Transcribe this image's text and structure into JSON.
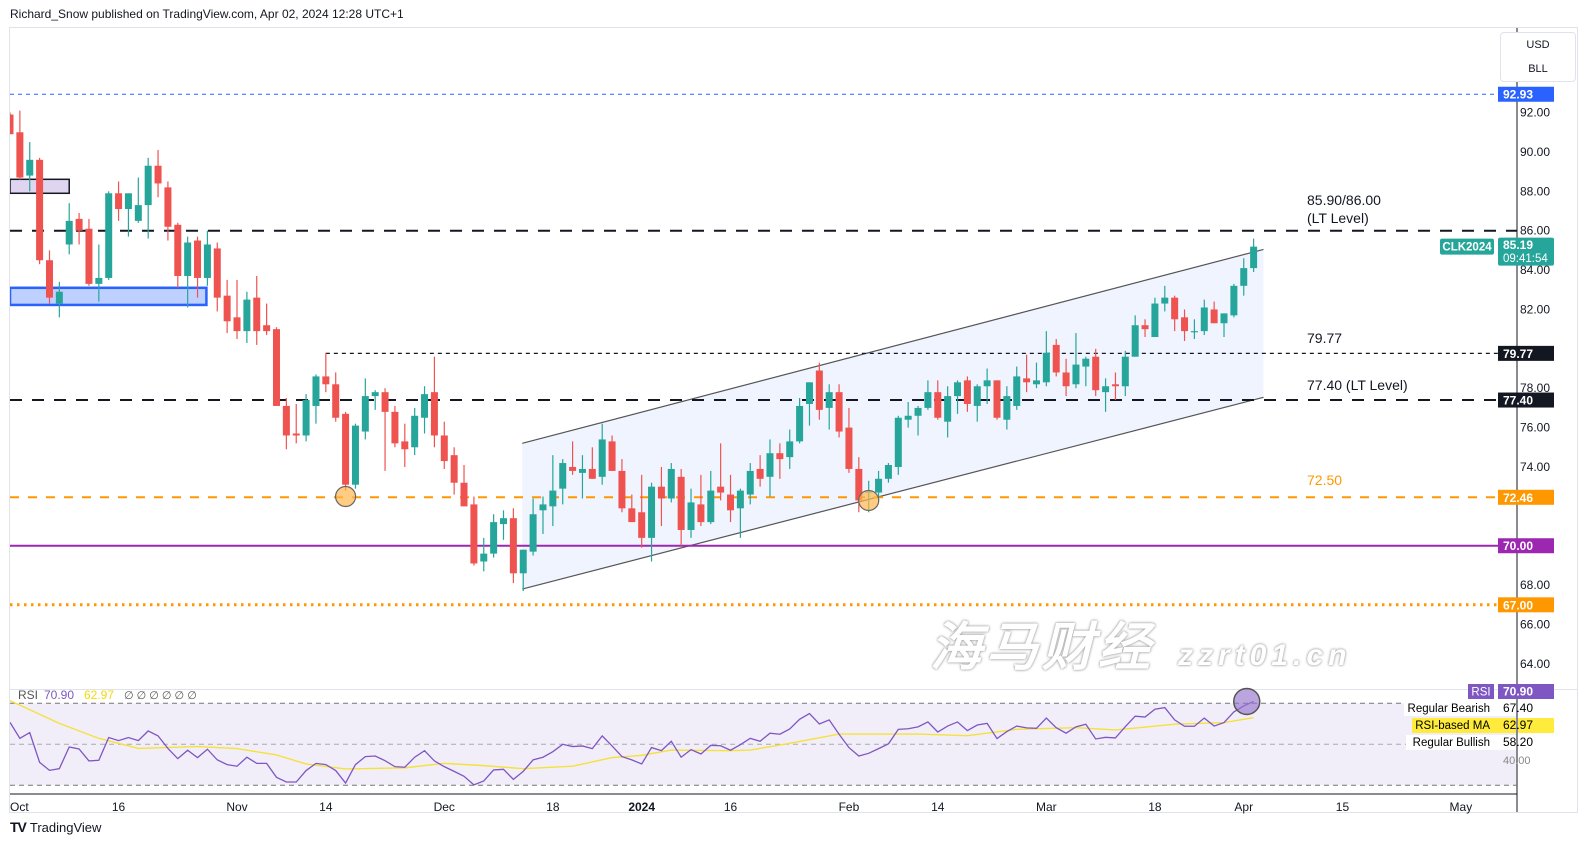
{
  "header": {
    "text": "Richard_Snow published on TradingView.com, Apr 02, 2024 12:28 UTC+1"
  },
  "unit_box": {
    "currency": "USD",
    "unit": "BLL"
  },
  "footer": {
    "logo_text": "TradingView"
  },
  "watermark": {
    "cn": "海马财经",
    "url": "zzrt01.cn"
  },
  "colors": {
    "up": "#26a69a",
    "down": "#ef5350",
    "rsi": "#7e57c2",
    "rsi_ma": "#f5e13b",
    "orange": "#ff9800",
    "purple": "#9c27b0",
    "blue": "#2962ff",
    "dark": "#131722"
  },
  "chart_data": [
    {
      "type": "candlestick",
      "symbol": "CLK2024",
      "last_price": "85.19",
      "countdown": "09:41:54",
      "ylim": [
        62.5,
        93.5
      ],
      "price_ticks": [
        "92.00",
        "90.00",
        "88.00",
        "86.00",
        "84.00",
        "82.00",
        "78.00",
        "76.00",
        "74.00",
        "68.00",
        "66.00",
        "64.00"
      ],
      "x_ticks": [
        {
          "label": "Oct",
          "bar": 0
        },
        {
          "label": "16",
          "bar": 11
        },
        {
          "label": "Nov",
          "bar": 23
        },
        {
          "label": "14",
          "bar": 32
        },
        {
          "label": "Dec",
          "bar": 44
        },
        {
          "label": "18",
          "bar": 55
        },
        {
          "label": "2024",
          "bar": 64,
          "bold": true
        },
        {
          "label": "16",
          "bar": 73
        },
        {
          "label": "Feb",
          "bar": 85
        },
        {
          "label": "14",
          "bar": 94
        },
        {
          "label": "Mar",
          "bar": 105
        },
        {
          "label": "18",
          "bar": 116
        },
        {
          "label": "Apr",
          "bar": 125
        },
        {
          "label": "15",
          "bar": 135
        },
        {
          "label": "May",
          "bar": 147
        }
      ],
      "ohlc": [
        [
          91.9,
          92.0,
          90.9,
          90.9
        ],
        [
          91.0,
          92.1,
          88.6,
          88.7
        ],
        [
          88.8,
          90.5,
          88.0,
          89.6
        ],
        [
          89.6,
          89.7,
          84.3,
          84.5
        ],
        [
          84.5,
          85.0,
          82.3,
          82.6
        ],
        [
          82.3,
          83.4,
          81.6,
          82.9
        ],
        [
          85.3,
          87.4,
          84.8,
          86.5
        ],
        [
          86.6,
          86.9,
          85.3,
          86.0
        ],
        [
          86.1,
          86.6,
          83.2,
          83.3
        ],
        [
          83.3,
          85.3,
          82.4,
          83.6
        ],
        [
          83.6,
          88.0,
          83.5,
          87.9
        ],
        [
          87.9,
          88.5,
          86.5,
          87.1
        ],
        [
          87.1,
          87.9,
          85.7,
          87.9
        ],
        [
          86.5,
          88.7,
          86.4,
          87.3
        ],
        [
          87.3,
          89.7,
          85.6,
          89.3
        ],
        [
          89.3,
          90.1,
          87.7,
          88.4
        ],
        [
          88.2,
          88.5,
          85.5,
          86.2
        ],
        [
          86.3,
          86.4,
          83.1,
          83.7
        ],
        [
          83.7,
          85.7,
          82.1,
          85.4
        ],
        [
          85.5,
          85.7,
          82.6,
          83.6
        ],
        [
          83.6,
          86.0,
          83.2,
          85.3
        ],
        [
          85.1,
          85.4,
          81.9,
          82.6
        ],
        [
          82.7,
          83.5,
          80.8,
          81.4
        ],
        [
          81.6,
          83.5,
          80.5,
          80.9
        ],
        [
          80.9,
          82.9,
          80.3,
          82.5
        ],
        [
          82.6,
          83.7,
          80.2,
          80.9
        ],
        [
          81.2,
          82.3,
          80.7,
          80.9
        ],
        [
          81.0,
          81.1,
          77.1,
          77.1
        ],
        [
          77.1,
          77.5,
          74.9,
          75.6
        ],
        [
          75.7,
          77.2,
          75.2,
          75.6
        ],
        [
          75.6,
          77.7,
          75.3,
          77.4
        ],
        [
          77.1,
          78.7,
          76.2,
          78.6
        ],
        [
          78.6,
          79.8,
          77.8,
          78.2
        ],
        [
          78.2,
          78.8,
          76.3,
          76.5
        ],
        [
          76.7,
          76.8,
          72.8,
          73.1
        ],
        [
          73.1,
          76.2,
          72.9,
          76.1
        ],
        [
          75.8,
          78.5,
          75.4,
          77.6
        ],
        [
          77.6,
          77.9,
          76.9,
          77.8
        ],
        [
          77.8,
          78.0,
          73.8,
          76.8
        ],
        [
          76.8,
          77.1,
          75.0,
          75.2
        ],
        [
          75.3,
          76.2,
          74.0,
          74.9
        ],
        [
          75.0,
          77.0,
          74.6,
          76.6
        ],
        [
          76.5,
          78.1,
          75.7,
          77.7
        ],
        [
          77.8,
          79.6,
          75.0,
          75.6
        ],
        [
          75.6,
          76.3,
          73.9,
          74.3
        ],
        [
          74.6,
          75.0,
          72.6,
          73.2
        ],
        [
          73.2,
          74.1,
          72.0,
          72.0
        ],
        [
          72.1,
          72.5,
          69.0,
          69.1
        ],
        [
          69.2,
          70.4,
          68.7,
          69.6
        ],
        [
          69.6,
          71.6,
          69.4,
          71.2
        ],
        [
          71.1,
          71.8,
          70.3,
          71.4
        ],
        [
          71.4,
          71.9,
          68.1,
          68.6
        ],
        [
          68.6,
          69.8,
          67.7,
          69.8
        ],
        [
          69.7,
          72.4,
          69.5,
          71.6
        ],
        [
          71.8,
          72.5,
          70.6,
          72.1
        ],
        [
          72.0,
          74.6,
          71.0,
          72.8
        ],
        [
          72.9,
          74.4,
          72.1,
          74.2
        ],
        [
          74.0,
          75.3,
          73.6,
          73.8
        ],
        [
          73.7,
          74.6,
          72.4,
          73.9
        ],
        [
          73.9,
          75.0,
          73.4,
          73.4
        ],
        [
          73.5,
          76.2,
          73.1,
          75.4
        ],
        [
          75.3,
          75.6,
          73.8,
          73.8
        ],
        [
          73.8,
          74.4,
          71.7,
          71.9
        ],
        [
          71.9,
          72.6,
          71.2,
          71.2
        ],
        [
          71.7,
          73.6,
          69.9,
          70.4
        ],
        [
          70.4,
          73.2,
          69.2,
          73.0
        ],
        [
          73.0,
          74.0,
          71.0,
          72.4
        ],
        [
          72.4,
          74.2,
          72.2,
          73.9
        ],
        [
          73.5,
          73.9,
          70.0,
          70.8
        ],
        [
          70.8,
          72.9,
          70.4,
          72.2
        ],
        [
          72.1,
          73.6,
          71.0,
          71.2
        ],
        [
          71.2,
          73.8,
          71.1,
          72.8
        ],
        [
          73.0,
          75.2,
          72.3,
          72.7
        ],
        [
          72.6,
          73.6,
          71.2,
          71.8
        ],
        [
          71.9,
          72.9,
          70.4,
          72.8
        ],
        [
          72.6,
          74.2,
          72.1,
          73.8
        ],
        [
          73.9,
          74.6,
          73.0,
          73.4
        ],
        [
          73.5,
          75.4,
          72.5,
          74.7
        ],
        [
          74.7,
          75.2,
          73.4,
          74.4
        ],
        [
          74.5,
          75.9,
          73.9,
          75.3
        ],
        [
          75.3,
          77.5,
          75.2,
          77.1
        ],
        [
          77.2,
          78.3,
          76.1,
          78.3
        ],
        [
          78.9,
          79.3,
          76.4,
          76.9
        ],
        [
          77.0,
          78.2,
          75.9,
          77.8
        ],
        [
          77.8,
          78.2,
          75.5,
          75.8
        ],
        [
          76.0,
          77.0,
          73.7,
          73.9
        ],
        [
          73.9,
          74.5,
          71.7,
          72.3
        ],
        [
          72.7,
          73.3,
          71.7,
          72.8
        ],
        [
          72.7,
          73.8,
          72.3,
          73.4
        ],
        [
          73.4,
          74.2,
          73.2,
          74.1
        ],
        [
          74.0,
          76.6,
          73.6,
          76.5
        ],
        [
          76.4,
          77.3,
          76.0,
          76.6
        ],
        [
          76.6,
          77.1,
          75.6,
          77.0
        ],
        [
          77.0,
          78.4,
          76.9,
          77.8
        ],
        [
          77.8,
          78.4,
          76.4,
          76.5
        ],
        [
          76.3,
          78.1,
          75.5,
          77.6
        ],
        [
          77.6,
          78.4,
          76.7,
          78.3
        ],
        [
          78.4,
          78.6,
          76.8,
          77.2
        ],
        [
          77.1,
          78.2,
          76.3,
          78.1
        ],
        [
          78.1,
          79.0,
          77.2,
          78.4
        ],
        [
          78.4,
          78.4,
          76.4,
          76.5
        ],
        [
          76.4,
          78.1,
          75.9,
          77.6
        ],
        [
          77.1,
          79.1,
          76.9,
          78.6
        ],
        [
          78.5,
          79.7,
          77.8,
          78.3
        ],
        [
          78.2,
          79.3,
          78.0,
          78.4
        ],
        [
          78.3,
          80.9,
          78.1,
          79.8
        ],
        [
          80.2,
          80.5,
          78.6,
          78.8
        ],
        [
          78.8,
          79.5,
          77.6,
          78.1
        ],
        [
          78.2,
          80.8,
          78.0,
          79.2
        ],
        [
          79.1,
          79.6,
          78.1,
          79.5
        ],
        [
          79.6,
          80.0,
          77.6,
          77.9
        ],
        [
          77.8,
          78.5,
          76.8,
          78.1
        ],
        [
          78.2,
          78.8,
          77.4,
          78.1
        ],
        [
          78.1,
          79.9,
          77.6,
          79.6
        ],
        [
          79.6,
          81.7,
          79.6,
          81.2
        ],
        [
          81.2,
          81.5,
          80.6,
          81.0
        ],
        [
          80.6,
          82.6,
          80.6,
          82.3
        ],
        [
          82.3,
          83.2,
          81.9,
          82.6
        ],
        [
          82.6,
          82.7,
          80.9,
          81.5
        ],
        [
          81.6,
          82.0,
          80.4,
          80.9
        ],
        [
          80.9,
          81.5,
          80.5,
          80.9
        ],
        [
          80.9,
          82.5,
          80.7,
          82.1
        ],
        [
          82.0,
          82.4,
          81.3,
          81.3
        ],
        [
          81.3,
          81.8,
          80.6,
          81.8
        ],
        [
          81.7,
          83.3,
          81.6,
          83.2
        ],
        [
          83.2,
          84.6,
          82.7,
          84.1
        ],
        [
          84.1,
          85.6,
          83.9,
          85.19
        ]
      ],
      "levels": [
        {
          "price": 92.93,
          "label": "92.93",
          "style": "dashed-thin",
          "color": "#2962ff"
        },
        {
          "price": 86.0,
          "label": "85.90/86.00",
          "label2": "(LT Level)",
          "style": "dashed-thick",
          "color": "#131722"
        },
        {
          "price": 79.77,
          "label": "79.77",
          "axis_label": "79.77",
          "style": "dotted-thin",
          "color": "#131722",
          "from_bar": 32
        },
        {
          "price": 77.4,
          "label": "77.40 (LT Level)",
          "axis_label": "77.40",
          "style": "dashed-thick",
          "color": "#131722"
        },
        {
          "price": 72.46,
          "label": "72.50",
          "axis_label": "72.46",
          "style": "dashed-orange",
          "color": "#ff9800"
        },
        {
          "price": 70.0,
          "axis_label": "70.00",
          "style": "solid",
          "color": "#9c27b0"
        },
        {
          "price": 67.0,
          "axis_label": "67.00",
          "style": "dotted-thick",
          "color": "#ff9800"
        }
      ],
      "zones": [
        {
          "from_bar": 0,
          "to_bar": 6,
          "top": 88.61,
          "bottom": 87.9,
          "color": "#9575cd"
        },
        {
          "from_bar": 0,
          "to_bar": 19.9,
          "top": 83.1,
          "bottom": 82.23,
          "color": "#2962ff"
        }
      ],
      "channel": {
        "start_bar": 51.9,
        "end_bar": 127,
        "upper": [
          75.2,
          85.05
        ],
        "lower": [
          67.8,
          77.54
        ]
      },
      "markers": [
        {
          "bar": 34,
          "price": 72.5
        },
        {
          "bar": 87,
          "price": 72.3
        }
      ]
    },
    {
      "type": "line",
      "title": "RSI",
      "legend": {
        "label": "RSI",
        "rsi": "70.90",
        "ma": "62.97",
        "extras": "∅ ∅ ∅ ∅ ∅ ∅"
      },
      "ylim": [
        30,
        70
      ],
      "bands": [
        70,
        50,
        30
      ],
      "right_labels": {
        "rsi_badge": "RSI",
        "rsi_value": "70.90",
        "bearish_label": "Regular Bearish",
        "bearish_value": "67.40",
        "ma_label": "RSI-based MA",
        "ma_value": "62.97",
        "bullish_label": "Regular Bullish",
        "bullish_value": "58.20",
        "tick_40": "40.00"
      },
      "rsi": [
        60.7,
        52.9,
        55.7,
        41.2,
        37.3,
        38.1,
        48.7,
        47.7,
        41.9,
        42.2,
        53.3,
        51.8,
        53.3,
        51.8,
        56.5,
        54.1,
        48.0,
        43.0,
        47.1,
        43.5,
        47.6,
        42.4,
        40.1,
        39.3,
        43.7,
        40.7,
        40.7,
        33.9,
        31.6,
        31.6,
        37.2,
        40.7,
        40.1,
        37.2,
        31.1,
        40.1,
        44.0,
        44.3,
        42.0,
        39.1,
        38.8,
        43.7,
        46.9,
        41.9,
        39.1,
        36.8,
        34.4,
        30.2,
        32.1,
        37.5,
        37.8,
        32.9,
        36.8,
        42.4,
        43.7,
        46.4,
        50.0,
        48.9,
        49.2,
        47.9,
        54.1,
        49.2,
        44.0,
        42.4,
        40.4,
        48.4,
        46.9,
        51.5,
        43.7,
        47.4,
        45.3,
        49.5,
        49.3,
        47.1,
        49.8,
        52.9,
        51.5,
        55.4,
        54.9,
        57.5,
        62.2,
        65.0,
        59.9,
        61.9,
        54.9,
        48.4,
        44.3,
        45.6,
        47.9,
        50.2,
        57.3,
        57.6,
        58.5,
        60.9,
        56.0,
        58.9,
        60.9,
        56.7,
        59.4,
        60.2,
        52.8,
        56.2,
        58.9,
        58.0,
        57.8,
        62.8,
        58.1,
        55.4,
        58.5,
        59.8,
        52.6,
        53.4,
        53.1,
        58.6,
        63.7,
        63.3,
        67.1,
        67.9,
        61.9,
        58.8,
        58.8,
        62.8,
        58.9,
        60.6,
        65.8,
        68.7,
        70.9
      ],
      "rsi_ma": [
        [
          0,
          71.3
        ],
        [
          5,
          60.2
        ],
        [
          9,
          52.9
        ],
        [
          13,
          48.0
        ],
        [
          19,
          48.9
        ],
        [
          23,
          47.9
        ],
        [
          27,
          44.8
        ],
        [
          30,
          40.4
        ],
        [
          34,
          38.0
        ],
        [
          40,
          38.5
        ],
        [
          44,
          40.7
        ],
        [
          48,
          39.6
        ],
        [
          52,
          38.1
        ],
        [
          57,
          39.3
        ],
        [
          61,
          43.5
        ],
        [
          64,
          44.6
        ],
        [
          67,
          47.2
        ],
        [
          73,
          46.9
        ],
        [
          75,
          47.2
        ],
        [
          79,
          50.5
        ],
        [
          84,
          55.0
        ],
        [
          92,
          55.0
        ],
        [
          97,
          54.2
        ],
        [
          102,
          57.3
        ],
        [
          108,
          58.1
        ],
        [
          112,
          57.0
        ],
        [
          118,
          59.8
        ],
        [
          123,
          60.6
        ],
        [
          126,
          62.97
        ]
      ],
      "marker": {
        "bar": 125,
        "value": 70.9
      }
    }
  ]
}
